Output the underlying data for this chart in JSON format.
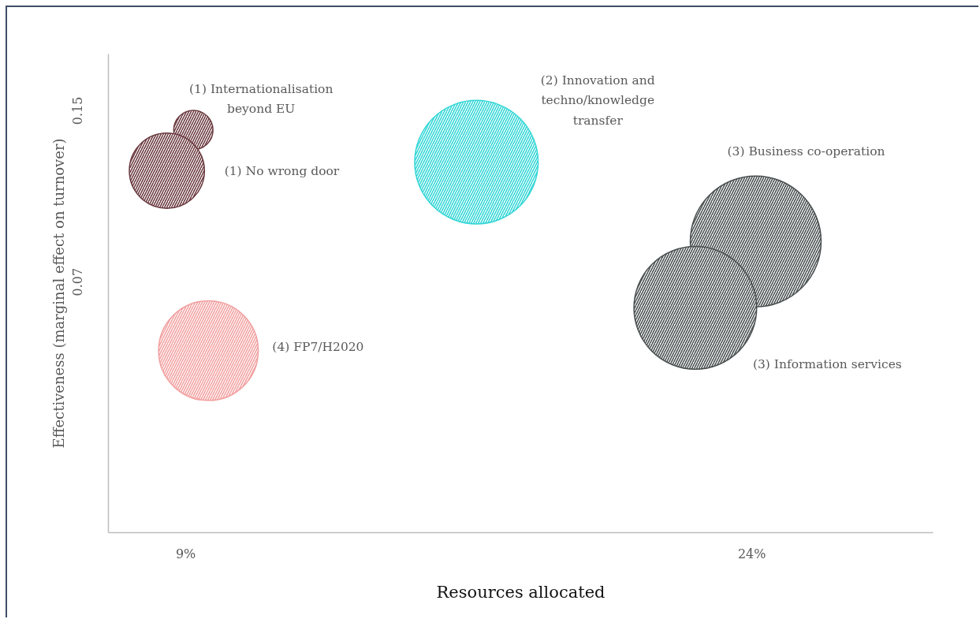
{
  "chart_data": {
    "type": "bubble",
    "xlabel": "Resources allocated",
    "ylabel": "Effectiveness (marginal effect on turnover)",
    "xlim": [
      6.95,
      28.8
    ],
    "ylim": [
      -0.047,
      0.1765
    ],
    "xticks": [
      {
        "value": 9,
        "label": "9%"
      },
      {
        "value": 24,
        "label": "24%"
      }
    ],
    "yticks": [
      0.15,
      0.07
    ],
    "series": [
      {
        "name": "(1) Internationalisation\nbeyond EU",
        "color": "#6b3a40",
        "x": [
          9.2
        ],
        "values": [
          0.141
        ],
        "sizes": [
          0.09
        ]
      },
      {
        "name": "(1) No wrong door",
        "color": "#6b3a40",
        "x": [
          8.5
        ],
        "values": [
          0.122
        ],
        "sizes": [
          0.33
        ]
      },
      {
        "name": "(2) Innovation and\ntechno/knowledge\ntransfer",
        "color": "#33d6d6",
        "x": [
          16.7
        ],
        "values": [
          0.126
        ],
        "sizes": [
          0.89
        ]
      },
      {
        "name": "(3) Business co-operation",
        "color": "#4a5050",
        "x": [
          24.1
        ],
        "values": [
          0.089
        ],
        "sizes": [
          1
        ]
      },
      {
        "name": "(3) Information services",
        "color": "#4a5050",
        "x": [
          22.5
        ],
        "values": [
          0.058
        ],
        "sizes": [
          0.88
        ]
      },
      {
        "name": "(4) FP7/H2020",
        "color": "#f2a0a0",
        "x": [
          9.6
        ],
        "values": [
          0.038
        ],
        "sizes": [
          0.58
        ]
      }
    ]
  }
}
